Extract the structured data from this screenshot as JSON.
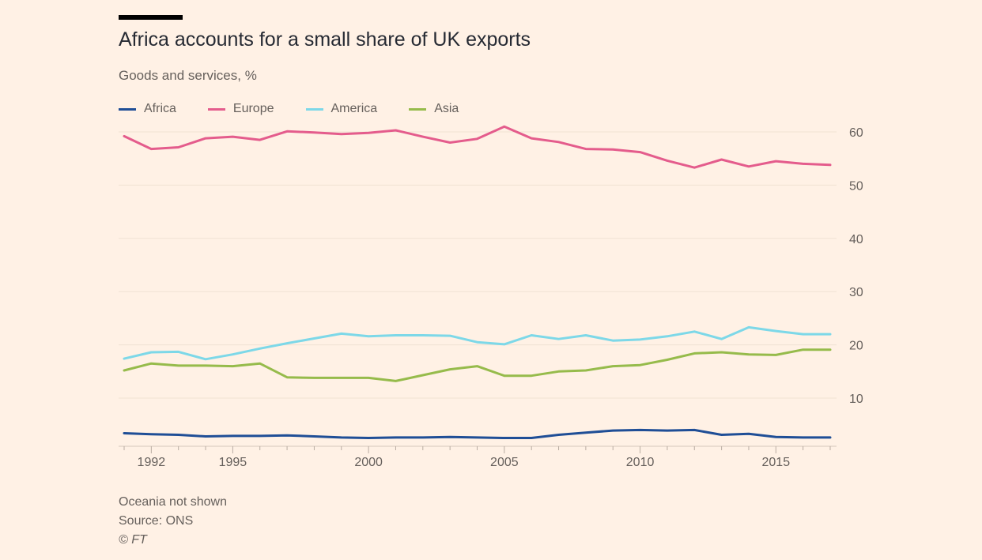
{
  "header": {
    "title": "Africa accounts for a small share of UK exports",
    "subtitle": "Goods and services, %"
  },
  "legend": [
    {
      "label": "Africa",
      "color": "#1f4e96"
    },
    {
      "label": "Europe",
      "color": "#e45c8c"
    },
    {
      "label": "America",
      "color": "#7dd8e8"
    },
    {
      "label": "Asia",
      "color": "#96bb4b"
    }
  ],
  "footer": {
    "note": "Oceania not shown",
    "source": "Source: ONS",
    "credit": "© FT"
  },
  "chart_data": {
    "type": "line",
    "title": "Africa accounts for a small share of UK exports",
    "subtitle": "Goods and services, %",
    "xlabel": "",
    "ylabel": "",
    "x": [
      1991,
      1992,
      1993,
      1994,
      1995,
      1996,
      1997,
      1998,
      1999,
      2000,
      2001,
      2002,
      2003,
      2004,
      2005,
      2006,
      2007,
      2008,
      2009,
      2010,
      2011,
      2012,
      2013,
      2014,
      2015,
      2016,
      2017
    ],
    "x_ticks": [
      1992,
      1995,
      2000,
      2005,
      2010,
      2015
    ],
    "y_ticks": [
      10,
      20,
      30,
      40,
      50,
      60
    ],
    "xlim": [
      1991,
      2017
    ],
    "ylim": [
      2,
      61
    ],
    "y_axis_position": "right",
    "grid": true,
    "legend_position": "top-left",
    "series": [
      {
        "name": "Africa",
        "color": "#1f4e96",
        "values": [
          3.4,
          3.2,
          3.1,
          2.8,
          2.9,
          2.9,
          3.0,
          2.8,
          2.6,
          2.5,
          2.6,
          2.6,
          2.7,
          2.6,
          2.5,
          2.5,
          3.1,
          3.5,
          3.9,
          4.0,
          3.9,
          4.0,
          3.1,
          3.3,
          2.7,
          2.6,
          2.6
        ]
      },
      {
        "name": "Europe",
        "color": "#e45c8c",
        "values": [
          59.2,
          56.8,
          57.1,
          58.8,
          59.1,
          58.5,
          60.1,
          59.9,
          59.6,
          59.8,
          60.3,
          59.1,
          58.0,
          58.7,
          61.0,
          58.8,
          58.1,
          56.8,
          56.7,
          56.2,
          54.6,
          53.3,
          54.8,
          53.5,
          54.5,
          54.0,
          53.8
        ]
      },
      {
        "name": "America",
        "color": "#7dd8e8",
        "values": [
          17.4,
          18.6,
          18.7,
          17.3,
          18.2,
          19.3,
          20.3,
          21.2,
          22.1,
          21.6,
          21.8,
          21.8,
          21.7,
          20.5,
          20.1,
          21.8,
          21.1,
          21.8,
          20.8,
          21.0,
          21.6,
          22.5,
          21.1,
          23.3,
          22.6,
          22.0,
          22.0
        ]
      },
      {
        "name": "Asia",
        "color": "#96bb4b",
        "values": [
          15.2,
          16.5,
          16.1,
          16.1,
          16.0,
          16.5,
          13.9,
          13.8,
          13.8,
          13.8,
          13.2,
          14.3,
          15.4,
          16.0,
          14.2,
          14.2,
          15.0,
          15.2,
          16.0,
          16.2,
          17.2,
          18.4,
          18.6,
          18.2,
          18.1,
          19.1,
          19.1
        ]
      }
    ]
  }
}
